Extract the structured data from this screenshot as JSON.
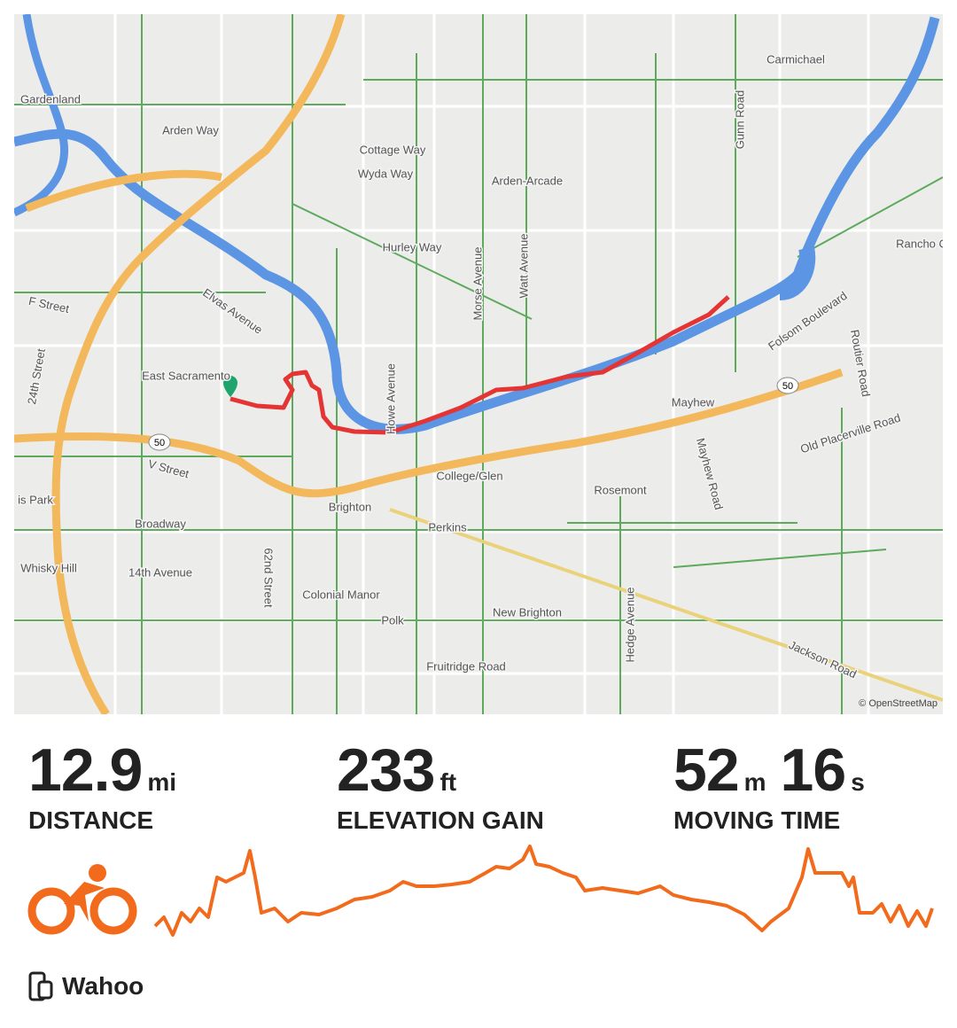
{
  "map": {
    "labels": [
      "Gardenland",
      "Arden Way",
      "Cottage Way",
      "Wyda Way",
      "Arden-Arcade",
      "Carmichael",
      "Gunn Road",
      "Hurley Way",
      "Morse Avenue",
      "Watt Avenue",
      "Rancho C",
      "F Street",
      "Elvas Avenue",
      "24th Street",
      "East Sacramento",
      "Folsom Boulevard",
      "Routier Road",
      "Mayhew",
      "Howe Avenue",
      "V Street",
      "Old Placerville Road",
      "Mayhew Road",
      "College/Glen",
      "Rosemont",
      "Brighton",
      "Perkins",
      "is Park",
      "Broadway",
      "Whisky Hill",
      "14th Avenue",
      "62nd Street",
      "Colonial Manor",
      "Polk",
      "New Brighton",
      "Hedge Avenue",
      "Fruitridge Road",
      "Jackson Road"
    ],
    "shields": [
      "50",
      "50"
    ],
    "attribution": "© OpenStreetMap"
  },
  "stats": [
    {
      "value": "12.9",
      "unit": "mi",
      "label": "DISTANCE"
    },
    {
      "value": "233",
      "unit": "ft",
      "label": "ELEVATION GAIN"
    },
    {
      "value": "52",
      "unit": "m",
      "value2": "16",
      "unit2": "s",
      "label": "MOVING TIME"
    }
  ],
  "device": "Wahoo"
}
